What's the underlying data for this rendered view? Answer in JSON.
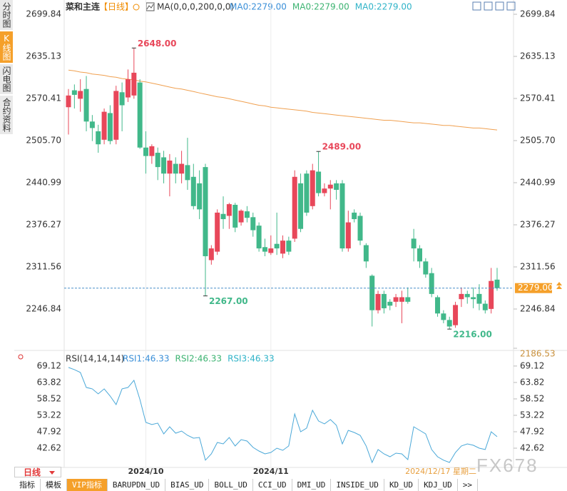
{
  "ui": {
    "sidebar_tabs": [
      "分时图",
      "K线图",
      "闪电图",
      "合约资料"
    ],
    "active_sidebar_tab": 1,
    "bottom_tabs": [
      "指标",
      "模板",
      "VIP指标",
      "BARUPDN_UD",
      "BIAS_UD",
      "BOLL_UD",
      "CCI_UD",
      "DMI_UD",
      "INSIDE_UD",
      "KD_UD",
      "KDJ_UD",
      ">>"
    ],
    "active_bottom_tab": 2,
    "period_button": "日线",
    "watermark": "FX678"
  },
  "chart_data": [
    {
      "type": "candlestick",
      "title": "菜和主连",
      "period": "【日线】",
      "indicator": "MA(0,0,0,200,0,0)",
      "ma_legend": [
        {
          "label": "MA0:2279.00",
          "color": "#3a8fd8"
        },
        {
          "label": "MA0:2279.00",
          "color": "#3cb371"
        },
        {
          "label": "MA0:2279.00",
          "color": "#2fb3c8"
        }
      ],
      "ylim": [
        2186.53,
        2699.84
      ],
      "yticks": [
        2699.84,
        2635.13,
        2570.41,
        {
          "value": 2505.7,
          "label": "2505.70"
        },
        2440.99,
        2376.27,
        2311.56,
        2246.84,
        2186.53
      ],
      "grid": false,
      "xticks": [
        {
          "value": 13,
          "label": "2024/10"
        },
        {
          "value": 34,
          "label": "2024/11"
        }
      ],
      "cursor": {
        "value": 72,
        "label": "2024/12/17 星期二"
      },
      "up_color": "#e8475a",
      "down_color": "#41b88a",
      "open": [
        2557,
        2583,
        2570,
        2585,
        2535,
        2520,
        2507,
        2548,
        2507,
        2580,
        2572,
        2575,
        2595,
        2495,
        2482,
        2487,
        2480,
        2455,
        2470,
        2455,
        2468,
        2450,
        2440,
        2465,
        2322,
        2335,
        2393,
        2390,
        2407,
        2380,
        2397,
        2388,
        2375,
        2342,
        2333,
        2347,
        2332,
        2352,
        2355,
        2440,
        2455,
        2405,
        2458,
        2425,
        2432,
        2440,
        2440,
        2340,
        2395,
        2390,
        2345,
        2298,
        2245,
        2270,
        2258,
        2258,
        2258,
        2265,
        2355,
        2340,
        2320,
        2302,
        2265,
        2240,
        2230,
        2222,
        2262,
        2270,
        2265,
        2270,
        2255,
        2247,
        2292
      ],
      "high": [
        2585,
        2592,
        2600,
        2605,
        2545,
        2530,
        2555,
        2560,
        2590,
        2595,
        2615,
        2648,
        2600,
        2520,
        2500,
        2495,
        2490,
        2485,
        2480,
        2490,
        2510,
        2470,
        2460,
        2470,
        2345,
        2400,
        2420,
        2410,
        2410,
        2400,
        2405,
        2395,
        2380,
        2355,
        2360,
        2395,
        2360,
        2358,
        2460,
        2455,
        2460,
        2470,
        2489,
        2440,
        2445,
        2445,
        2445,
        2398,
        2400,
        2395,
        2348,
        2300,
        2275,
        2275,
        2262,
        2270,
        2275,
        2280,
        2370,
        2345,
        2325,
        2310,
        2268,
        2245,
        2235,
        2258,
        2280,
        2275,
        2280,
        2285,
        2260,
        2310,
        2310
      ],
      "low": [
        2515,
        2555,
        2550,
        2520,
        2505,
        2487,
        2500,
        2500,
        2500,
        2520,
        2565,
        2570,
        2493,
        2455,
        2470,
        2445,
        2440,
        2420,
        2440,
        2440,
        2430,
        2400,
        2385,
        2267,
        2315,
        2330,
        2370,
        2370,
        2365,
        2375,
        2380,
        2358,
        2335,
        2328,
        2330,
        2330,
        2325,
        2330,
        2350,
        2365,
        2390,
        2400,
        2420,
        2420,
        2400,
        2415,
        2335,
        2335,
        2380,
        2345,
        2310,
        2220,
        2240,
        2240,
        2245,
        2250,
        2225,
        2255,
        2320,
        2310,
        2295,
        2265,
        2235,
        2225,
        2216,
        2218,
        2250,
        2255,
        2248,
        2245,
        2240,
        2240,
        2275
      ],
      "close": [
        2575,
        2576,
        2582,
        2535,
        2525,
        2500,
        2550,
        2505,
        2582,
        2560,
        2600,
        2610,
        2495,
        2482,
        2497,
        2465,
        2455,
        2475,
        2455,
        2470,
        2445,
        2405,
        2400,
        2328,
        2340,
        2395,
        2385,
        2408,
        2372,
        2398,
        2387,
        2368,
        2340,
        2335,
        2340,
        2340,
        2352,
        2335,
        2450,
        2370,
        2395,
        2460,
        2425,
        2432,
        2438,
        2430,
        2340,
        2380,
        2385,
        2352,
        2320,
        2245,
        2270,
        2248,
        2252,
        2265,
        2265,
        2258,
        2340,
        2320,
        2300,
        2270,
        2240,
        2230,
        2220,
        2253,
        2270,
        2265,
        2262,
        2255,
        2245,
        2290,
        2279
      ],
      "ma": {
        "color": "#f0a050",
        "values": [
          2614,
          2613,
          2611,
          2610,
          2608,
          2607,
          2606,
          2604,
          2603,
          2601,
          2600,
          2599,
          2597,
          2596,
          2594,
          2592,
          2590,
          2588,
          2586,
          2585,
          2583,
          2581,
          2579,
          2577,
          2575,
          2573,
          2572,
          2570,
          2568,
          2566,
          2564,
          2562,
          2560,
          2559,
          2557,
          2556,
          2555,
          2554,
          2553,
          2552,
          2551,
          2549,
          2548,
          2547,
          2546,
          2545,
          2544,
          2543,
          2542,
          2541,
          2540,
          2539,
          2538,
          2537,
          2537,
          2536,
          2535,
          2534,
          2533,
          2533,
          2532,
          2531,
          2530,
          2529,
          2529,
          2528,
          2527,
          2526,
          2525,
          2525,
          2524,
          2523,
          2522
        ]
      },
      "last": {
        "value": 2279,
        "label": "2279.00"
      },
      "annotations": [
        {
          "index": 11,
          "value": 2648,
          "label": "2648.00"
        },
        {
          "index": 42,
          "value": 2489,
          "label": "2489.00"
        },
        {
          "index": 23,
          "value": 2267,
          "label": "2267.00"
        },
        {
          "index": 64,
          "value": 2216,
          "label": "2216.00"
        }
      ]
    },
    {
      "type": "line",
      "title": "RSI(14,14,14)",
      "legend": [
        {
          "label": "RSI1:46.33",
          "color": "#3a8fd8"
        },
        {
          "label": "RSI2:46.33",
          "color": "#3cb371"
        },
        {
          "label": "RSI3:46.33",
          "color": "#2fb3c8"
        }
      ],
      "ylim": [
        36.4,
        71.4
      ],
      "yticks": [
        69.12,
        63.82,
        58.52,
        53.22,
        47.92,
        42.62
      ],
      "color": "#4aa8d8",
      "values": [
        68.66,
        67.97,
        67.05,
        62.21,
        61.75,
        60.14,
        61.75,
        59.44,
        56.68,
        61.75,
        62.21,
        64.51,
        58.29,
        50.92,
        50.23,
        50.69,
        47.23,
        49.53,
        47.46,
        48.15,
        46.77,
        45.85,
        46.08,
        38.75,
        40.78,
        44.47,
        44.01,
        46.08,
        43.32,
        45.39,
        44.93,
        42.86,
        41.7,
        40.78,
        41.24,
        42.62,
        41.93,
        43.32,
        53.68,
        47.92,
        49.08,
        54.84,
        51.38,
        50.46,
        51.84,
        50,
        44.01,
        48.38,
        47.69,
        46.77,
        43.32,
        38.02,
        42.17,
        40.78,
        39.86,
        41.01,
        40.78,
        38.94,
        49.53,
        48.38,
        47.23,
        42.17,
        39.86,
        38.75,
        38.02,
        41.24,
        43.32,
        44.01,
        43.55,
        42.62,
        42.17,
        47.92,
        46.33
      ]
    }
  ]
}
